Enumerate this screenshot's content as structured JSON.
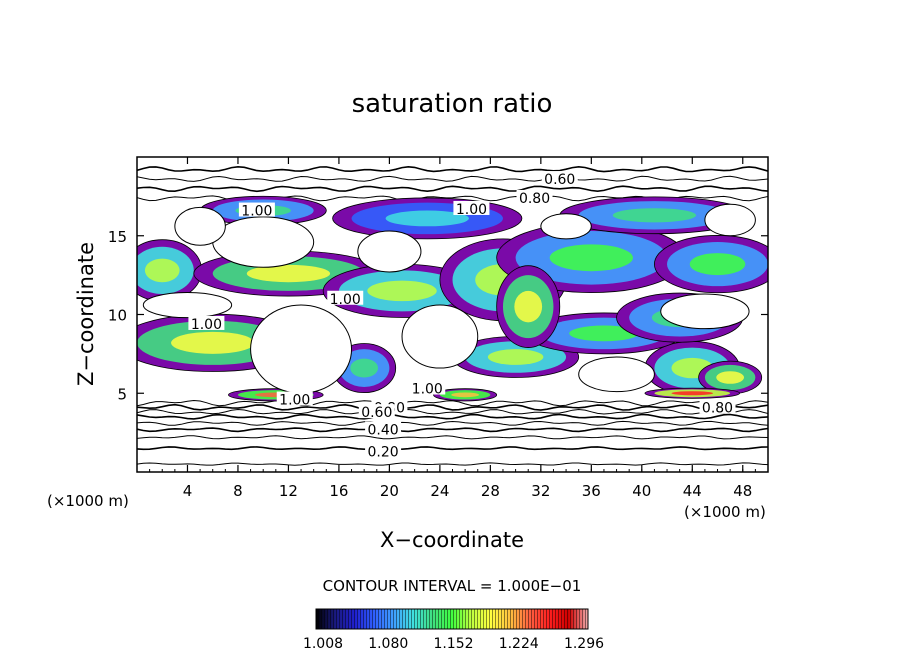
{
  "chart_data": {
    "type": "heatmap",
    "title": "saturation ratio",
    "xlabel": "X−coordinate",
    "ylabel": "Z−coordinate",
    "x_unit_left": "(×1000 m)",
    "x_unit_right": "(×1000 m)",
    "xlim": [
      0,
      50
    ],
    "ylim": [
      0,
      20
    ],
    "x_ticks": [
      4,
      8,
      12,
      16,
      20,
      24,
      28,
      32,
      36,
      40,
      44,
      48
    ],
    "y_ticks": [
      5,
      10,
      15
    ],
    "contour_interval_text": "CONTOUR INTERVAL = 1.000E−01",
    "colorbar": {
      "ticks": [
        "1.008",
        "1.080",
        "1.152",
        "1.224",
        "1.296"
      ],
      "colors": [
        "#000000",
        "#1a1a80",
        "#2020d0",
        "#3060ff",
        "#40a0ff",
        "#40e0e0",
        "#40e080",
        "#40ff40",
        "#c0ff40",
        "#ffff40",
        "#ffc040",
        "#ff6040",
        "#ff2020",
        "#d00000",
        "#f0b0b0"
      ]
    },
    "contour_labels": [
      {
        "text": "0.60",
        "x": 33.5,
        "y": 18.6
      },
      {
        "text": "0.80",
        "x": 31.5,
        "y": 17.4
      },
      {
        "text": "1.00",
        "x": 9.5,
        "y": 16.6
      },
      {
        "text": "1.00",
        "x": 26.5,
        "y": 16.7
      },
      {
        "text": "1.00",
        "x": 16.5,
        "y": 11.0
      },
      {
        "text": "1.00",
        "x": 5.5,
        "y": 9.4
      },
      {
        "text": "1.00",
        "x": 23.0,
        "y": 5.3
      },
      {
        "text": "1.00",
        "x": 12.5,
        "y": 4.6
      },
      {
        "text": "0.80",
        "x": 20.0,
        "y": 4.1
      },
      {
        "text": "0.60",
        "x": 19.0,
        "y": 3.8
      },
      {
        "text": "0.40",
        "x": 19.5,
        "y": 2.7
      },
      {
        "text": "0.20",
        "x": 19.5,
        "y": 1.3
      },
      {
        "text": "0.80",
        "x": 46.0,
        "y": 4.1
      }
    ],
    "supersaturated_regions": [
      {
        "x": 6,
        "y": 8.2,
        "rx": 6,
        "ry": 1.4,
        "level": 0.6
      },
      {
        "x": 2,
        "y": 12.8,
        "rx": 2.5,
        "ry": 1.5,
        "level": 0.5
      },
      {
        "x": 12,
        "y": 12.6,
        "rx": 6,
        "ry": 1.1,
        "level": 0.55
      },
      {
        "x": 21,
        "y": 11.5,
        "rx": 5,
        "ry": 1.3,
        "level": 0.5
      },
      {
        "x": 29,
        "y": 12.2,
        "rx": 4,
        "ry": 2,
        "level": 0.45
      },
      {
        "x": 36,
        "y": 13.6,
        "rx": 6,
        "ry": 1.7,
        "level": 0.4
      },
      {
        "x": 46,
        "y": 13.2,
        "rx": 4,
        "ry": 1.4,
        "level": 0.4
      },
      {
        "x": 23,
        "y": 16.1,
        "rx": 6,
        "ry": 1,
        "level": 0.25
      },
      {
        "x": 41,
        "y": 16.3,
        "rx": 6,
        "ry": 0.9,
        "level": 0.3
      },
      {
        "x": 44,
        "y": 6.6,
        "rx": 3,
        "ry": 1.3,
        "level": 0.5
      },
      {
        "x": 47,
        "y": 6.0,
        "rx": 2,
        "ry": 0.8,
        "level": 0.6
      },
      {
        "x": 44,
        "y": 5.0,
        "rx": 3,
        "ry": 0.25,
        "level": 0.85
      },
      {
        "x": 11,
        "y": 4.9,
        "rx": 3,
        "ry": 0.3,
        "level": 0.75
      },
      {
        "x": 26,
        "y": 4.9,
        "rx": 2,
        "ry": 0.3,
        "level": 0.7
      },
      {
        "x": 30,
        "y": 7.3,
        "rx": 4,
        "ry": 1,
        "level": 0.45
      },
      {
        "x": 37,
        "y": 8.8,
        "rx": 5,
        "ry": 1,
        "level": 0.4
      },
      {
        "x": 18,
        "y": 6.6,
        "rx": 2,
        "ry": 1.2,
        "level": 0.35
      },
      {
        "x": 43,
        "y": 9.8,
        "rx": 4,
        "ry": 1.2,
        "level": 0.35
      },
      {
        "x": 10,
        "y": 16.6,
        "rx": 4,
        "ry": 0.7,
        "level": 0.3
      },
      {
        "x": 31,
        "y": 10.5,
        "rx": 2,
        "ry": 2,
        "level": 0.55
      }
    ],
    "undersaturated_holes": [
      {
        "x": 13,
        "y": 7.8,
        "rx": 4,
        "ry": 2.8
      },
      {
        "x": 4,
        "y": 10.6,
        "rx": 3.5,
        "ry": 0.8
      },
      {
        "x": 10,
        "y": 14.6,
        "rx": 4,
        "ry": 1.6
      },
      {
        "x": 20,
        "y": 14.0,
        "rx": 2.5,
        "ry": 1.3
      },
      {
        "x": 34,
        "y": 15.6,
        "rx": 2,
        "ry": 0.8
      },
      {
        "x": 45,
        "y": 10.2,
        "rx": 3.5,
        "ry": 1.1
      },
      {
        "x": 24,
        "y": 8.6,
        "rx": 3,
        "ry": 2
      },
      {
        "x": 5,
        "y": 15.6,
        "rx": 2,
        "ry": 1.2
      },
      {
        "x": 47,
        "y": 16.0,
        "rx": 2,
        "ry": 1
      },
      {
        "x": 38,
        "y": 6.2,
        "rx": 3,
        "ry": 1.1
      }
    ],
    "lower_contours_y": [
      0.5,
      1.5,
      2.2,
      2.7,
      3.1,
      3.5,
      3.8,
      4.1,
      4.4
    ],
    "upper_contours_y": [
      17.4,
      18.0,
      18.6,
      19.2
    ]
  }
}
